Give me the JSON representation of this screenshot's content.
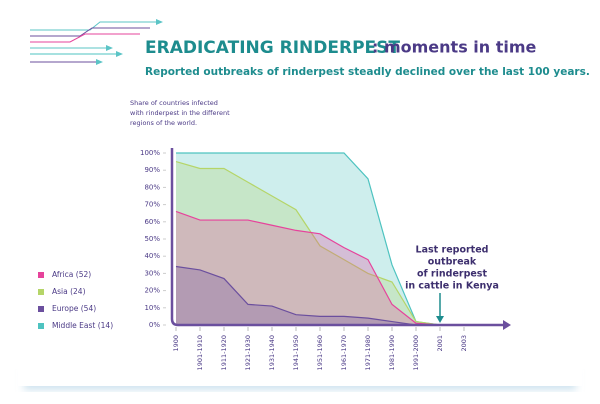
{
  "chart_data": {
    "type": "area",
    "title": "ERADICATING RINDERPEST",
    "title_suffix": ": moments in time",
    "subtitle": "Reported outbreaks of rinderpest steadly declined over the last 100 years.",
    "y_note": [
      "Share of countries infected",
      "with rinderpest in the different",
      "regions of the world."
    ],
    "annotation": [
      "Last reported",
      "outbreak",
      "of rinderpest",
      "in cattle in Kenya"
    ],
    "categories": [
      "1900",
      "1901-1910",
      "1911-1920",
      "1921-1930",
      "1931-1940",
      "1941-1950",
      "1951-1960",
      "1961-1970",
      "1971-1980",
      "1981-1990",
      "1991-2000",
      "2001",
      "2003"
    ],
    "ylim": [
      0,
      100
    ],
    "yticks": [
      {
        "value": 0,
        "label": "0%"
      },
      {
        "value": 10,
        "label": "10%"
      },
      {
        "value": 20,
        "label": "20%"
      },
      {
        "value": 30,
        "label": "30%"
      },
      {
        "value": 40,
        "label": "40%"
      },
      {
        "value": 50,
        "label": "50%"
      },
      {
        "value": 60,
        "label": "60%"
      },
      {
        "value": 70,
        "label": "70%"
      },
      {
        "value": 80,
        "label": "80%"
      },
      {
        "value": 90,
        "label": "90%"
      },
      {
        "value": 100,
        "label": "100%"
      }
    ],
    "series": [
      {
        "name": "Middle East (14)",
        "color": "#4ec3c0",
        "values": [
          100,
          100,
          100,
          100,
          100,
          100,
          100,
          100,
          85,
          35,
          2,
          0,
          null
        ]
      },
      {
        "name": "Asia (24)",
        "color": "#b5d568",
        "values": [
          95,
          91,
          91,
          83,
          75,
          67,
          46,
          38,
          30,
          25,
          2,
          0,
          null
        ]
      },
      {
        "name": "Africa (52)",
        "color": "#e6439b",
        "values": [
          66,
          61,
          61,
          61,
          58,
          55,
          53,
          45,
          38,
          12,
          1,
          0,
          null
        ]
      },
      {
        "name": "Europe (54)",
        "color": "#6b4f9e",
        "values": [
          34,
          32,
          27,
          12,
          11,
          6,
          5,
          5,
          4,
          2,
          0,
          0,
          null
        ]
      }
    ],
    "legend_order": [
      2,
      1,
      3,
      0
    ]
  }
}
